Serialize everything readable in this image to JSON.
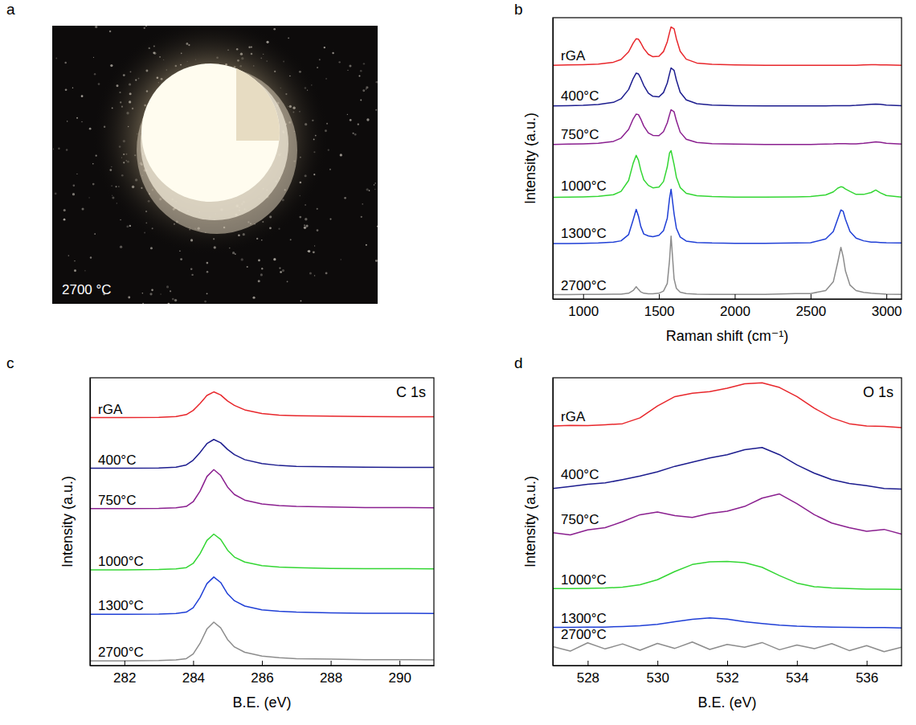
{
  "chart_data": [
    {
      "type": "photo",
      "panel": "a",
      "annotation": "2700 °C"
    },
    {
      "type": "line",
      "panel": "b",
      "xlabel": "Raman shift (cm⁻¹)",
      "ylabel": "Intensity (a.u.)",
      "xlim": [
        800,
        3100
      ],
      "xticks": [
        1000,
        1500,
        2000,
        2500,
        3000
      ],
      "ylim": [
        0,
        10.3
      ],
      "grid": false,
      "tick_labels": "x",
      "x": [
        800,
        900,
        1000,
        1100,
        1200,
        1250,
        1300,
        1330,
        1350,
        1365,
        1380,
        1400,
        1430,
        1460,
        1500,
        1530,
        1555,
        1570,
        1580,
        1600,
        1615,
        1640,
        1680,
        1750,
        1850,
        2000,
        2200,
        2400,
        2500,
        2600,
        2650,
        2680,
        2700,
        2715,
        2730,
        2760,
        2800,
        2850,
        2900,
        2930,
        2960,
        3000,
        3100
      ],
      "series": [
        {
          "name": "rGA",
          "color": "#e8262b",
          "values": [
            8.56,
            8.57,
            8.58,
            8.6,
            8.67,
            8.77,
            9.05,
            9.37,
            9.53,
            9.51,
            9.38,
            9.17,
            8.96,
            8.87,
            8.89,
            9.06,
            9.42,
            9.76,
            9.96,
            9.89,
            9.53,
            9.07,
            8.78,
            8.64,
            8.59,
            8.57,
            8.56,
            8.56,
            8.56,
            8.56,
            8.56,
            8.56,
            8.56,
            8.56,
            8.56,
            8.56,
            8.56,
            8.57,
            8.58,
            8.58,
            8.57,
            8.57,
            8.56
          ]
        },
        {
          "name": "400°C",
          "color": "#1c1c8e",
          "values": [
            7.07,
            7.08,
            7.09,
            7.12,
            7.2,
            7.33,
            7.67,
            8.07,
            8.27,
            8.24,
            8.08,
            7.82,
            7.54,
            7.42,
            7.4,
            7.56,
            7.91,
            8.25,
            8.46,
            8.37,
            8.02,
            7.57,
            7.29,
            7.15,
            7.1,
            7.08,
            7.07,
            7.07,
            7.07,
            7.07,
            7.08,
            7.08,
            7.08,
            7.08,
            7.08,
            7.08,
            7.09,
            7.11,
            7.13,
            7.14,
            7.13,
            7.1,
            7.08
          ]
        },
        {
          "name": "750°C",
          "color": "#8a1f8f",
          "values": [
            5.66,
            5.67,
            5.68,
            5.7,
            5.77,
            5.89,
            6.21,
            6.59,
            6.77,
            6.75,
            6.59,
            6.33,
            6.08,
            5.99,
            5.98,
            6.13,
            6.45,
            6.75,
            6.93,
            6.85,
            6.53,
            6.11,
            5.85,
            5.73,
            5.69,
            5.67,
            5.66,
            5.66,
            5.66,
            5.67,
            5.68,
            5.69,
            5.69,
            5.69,
            5.69,
            5.68,
            5.68,
            5.7,
            5.73,
            5.75,
            5.74,
            5.7,
            5.67
          ]
        },
        {
          "name": "1000°C",
          "color": "#33d633",
          "values": [
            3.72,
            3.73,
            3.74,
            3.76,
            3.82,
            3.94,
            4.34,
            4.97,
            5.26,
            5.08,
            4.72,
            4.36,
            4.16,
            4.07,
            4.1,
            4.3,
            4.84,
            5.35,
            5.43,
            4.92,
            4.46,
            4.08,
            3.87,
            3.78,
            3.75,
            3.73,
            3.73,
            3.74,
            3.75,
            3.81,
            3.92,
            4.06,
            4.11,
            4.09,
            4.03,
            3.94,
            3.83,
            3.83,
            3.9,
            3.99,
            3.89,
            3.79,
            3.73
          ]
        },
        {
          "name": "1300°C",
          "color": "#1f3fd6",
          "values": [
            2.03,
            2.03,
            2.04,
            2.05,
            2.08,
            2.13,
            2.36,
            2.9,
            3.28,
            3.03,
            2.66,
            2.38,
            2.31,
            2.28,
            2.33,
            2.5,
            2.96,
            3.69,
            4.02,
            3.11,
            2.59,
            2.27,
            2.12,
            2.07,
            2.05,
            2.04,
            2.04,
            2.05,
            2.06,
            2.2,
            2.47,
            2.94,
            3.26,
            3.21,
            2.92,
            2.47,
            2.23,
            2.13,
            2.08,
            2.08,
            2.07,
            2.06,
            2.05
          ]
        },
        {
          "name": "2700°C",
          "color": "#8c8c8c",
          "values": [
            0.16,
            0.16,
            0.17,
            0.17,
            0.18,
            0.18,
            0.21,
            0.31,
            0.45,
            0.35,
            0.26,
            0.21,
            0.19,
            0.19,
            0.21,
            0.29,
            0.57,
            1.43,
            2.3,
            0.73,
            0.39,
            0.25,
            0.2,
            0.18,
            0.17,
            0.17,
            0.17,
            0.2,
            0.2,
            0.31,
            0.63,
            1.36,
            1.89,
            1.55,
            1.03,
            0.51,
            0.31,
            0.24,
            0.21,
            0.2,
            0.19,
            0.18,
            0.17
          ]
        }
      ]
    },
    {
      "type": "line",
      "panel": "c",
      "title": "C 1s",
      "xlabel": "B.E. (eV)",
      "ylabel": "Intensity (a.u.)",
      "xlim": [
        281,
        291
      ],
      "xticks": [
        282,
        284,
        286,
        288,
        290
      ],
      "ylim": [
        0,
        10.4
      ],
      "grid": false,
      "tick_labels": "x",
      "x": [
        281,
        282,
        283,
        283.5,
        283.8,
        284,
        284.2,
        284.4,
        284.6,
        284.8,
        285,
        285.2,
        285.5,
        286,
        286.5,
        287,
        288,
        289,
        290,
        291
      ],
      "series": [
        {
          "name": "rGA",
          "color": "#e8262b",
          "values": [
            8.96,
            8.96,
            8.97,
            9.0,
            9.07,
            9.22,
            9.47,
            9.76,
            9.89,
            9.78,
            9.56,
            9.4,
            9.24,
            9.11,
            9.05,
            9.03,
            9.01,
            9.0,
            8.99,
            8.99
          ]
        },
        {
          "name": "400°C",
          "color": "#1c1c8e",
          "values": [
            7.13,
            7.13,
            7.14,
            7.17,
            7.25,
            7.42,
            7.7,
            8.02,
            8.17,
            8.05,
            7.81,
            7.62,
            7.44,
            7.3,
            7.23,
            7.2,
            7.18,
            7.17,
            7.16,
            7.16
          ]
        },
        {
          "name": "750°C",
          "color": "#8a1f8f",
          "values": [
            5.67,
            5.67,
            5.68,
            5.7,
            5.75,
            5.92,
            6.3,
            6.83,
            7.08,
            6.87,
            6.45,
            6.18,
            5.98,
            5.84,
            5.78,
            5.75,
            5.73,
            5.71,
            5.71,
            5.7
          ]
        },
        {
          "name": "1000°C",
          "color": "#33d633",
          "values": [
            3.46,
            3.46,
            3.47,
            3.49,
            3.54,
            3.69,
            4.04,
            4.52,
            4.75,
            4.56,
            4.17,
            3.92,
            3.74,
            3.61,
            3.56,
            3.54,
            3.51,
            3.5,
            3.5,
            3.49
          ]
        },
        {
          "name": "1300°C",
          "color": "#1f3fd6",
          "values": [
            1.85,
            1.85,
            1.86,
            1.88,
            1.93,
            2.09,
            2.46,
            2.96,
            3.2,
            3.0,
            2.59,
            2.34,
            2.15,
            2.01,
            1.96,
            1.93,
            1.9,
            1.89,
            1.89,
            1.88
          ]
        },
        {
          "name": "2700°C",
          "color": "#8c8c8c",
          "values": [
            0.17,
            0.17,
            0.18,
            0.2,
            0.25,
            0.42,
            0.8,
            1.32,
            1.57,
            1.36,
            0.94,
            0.67,
            0.48,
            0.34,
            0.28,
            0.25,
            0.23,
            0.21,
            0.21,
            0.2
          ]
        }
      ]
    },
    {
      "type": "line",
      "panel": "d",
      "title": "O 1s",
      "xlabel": "B.E. (eV)",
      "ylabel": "Intensity (a.u.)",
      "xlim": [
        527,
        537
      ],
      "xticks": [
        528,
        530,
        532,
        534,
        536
      ],
      "ylim": [
        0,
        10.4
      ],
      "grid": false,
      "tick_labels": "x",
      "x": [
        527,
        527.5,
        528,
        528.5,
        529,
        529.5,
        530,
        530.5,
        531,
        531.5,
        532,
        532.5,
        533,
        533.5,
        534,
        534.5,
        535,
        535.5,
        536,
        536.5,
        537
      ],
      "series": [
        {
          "name": "rGA",
          "color": "#e8262b",
          "values": [
            8.66,
            8.68,
            8.67,
            8.7,
            8.74,
            8.95,
            9.38,
            9.72,
            9.84,
            9.9,
            10.02,
            10.18,
            10.22,
            10.05,
            9.72,
            9.3,
            8.95,
            8.74,
            8.66,
            8.64,
            8.6
          ]
        },
        {
          "name": "400°C",
          "color": "#1c1c8e",
          "values": [
            6.4,
            6.47,
            6.55,
            6.6,
            6.72,
            6.85,
            7.0,
            7.2,
            7.35,
            7.5,
            7.62,
            7.8,
            7.88,
            7.62,
            7.25,
            6.95,
            6.72,
            6.58,
            6.5,
            6.4,
            6.38
          ]
        },
        {
          "name": "750°C",
          "color": "#8a1f8f",
          "values": [
            4.8,
            4.72,
            4.9,
            4.98,
            5.2,
            5.45,
            5.55,
            5.42,
            5.35,
            5.5,
            5.58,
            5.75,
            6.05,
            6.2,
            5.85,
            5.45,
            5.15,
            4.98,
            4.85,
            4.92,
            4.75
          ]
        },
        {
          "name": "1000°C",
          "color": "#33d633",
          "values": [
            2.78,
            2.78,
            2.79,
            2.8,
            2.83,
            2.92,
            3.1,
            3.4,
            3.65,
            3.75,
            3.76,
            3.72,
            3.55,
            3.25,
            2.98,
            2.85,
            2.8,
            2.78,
            2.76,
            2.76,
            2.75
          ]
        },
        {
          "name": "1300°C",
          "color": "#1f3fd6",
          "values": [
            1.38,
            1.38,
            1.39,
            1.39,
            1.41,
            1.44,
            1.49,
            1.58,
            1.67,
            1.72,
            1.68,
            1.58,
            1.52,
            1.46,
            1.42,
            1.4,
            1.39,
            1.38,
            1.37,
            1.37,
            1.36
          ]
        },
        {
          "name": "2700°C",
          "color": "#8c8c8c",
          "values": [
            0.68,
            0.52,
            0.82,
            0.6,
            0.78,
            0.55,
            0.8,
            0.62,
            0.85,
            0.58,
            0.76,
            0.66,
            0.83,
            0.57,
            0.74,
            0.61,
            0.79,
            0.54,
            0.72,
            0.5,
            0.66
          ]
        }
      ]
    }
  ]
}
